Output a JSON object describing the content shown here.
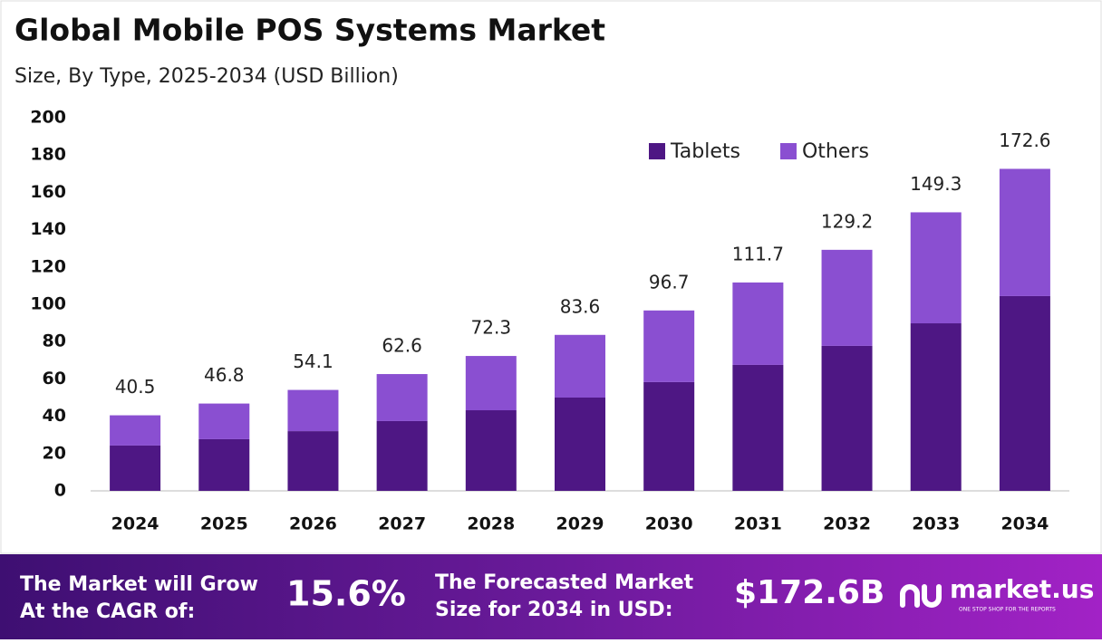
{
  "chart_data": {
    "type": "bar",
    "stacked": true,
    "title": "Global Mobile POS Systems Market",
    "subtitle": "Size, By Type, 2025-2034 (USD Billion)",
    "categories": [
      "2024",
      "2025",
      "2026",
      "2027",
      "2028",
      "2029",
      "2030",
      "2031",
      "2032",
      "2033",
      "2034"
    ],
    "series": [
      {
        "name": "Tablets",
        "color": "#4e1784",
        "values": [
          24.3,
          27.7,
          32.0,
          37.4,
          43.2,
          50.0,
          58.3,
          67.5,
          77.7,
          89.8,
          104.4
        ]
      },
      {
        "name": "Others",
        "color": "#8a4fd1",
        "values": [
          16.2,
          19.1,
          22.1,
          25.2,
          29.1,
          33.6,
          38.4,
          44.2,
          51.5,
          59.5,
          68.2
        ]
      }
    ],
    "totals": [
      40.5,
      46.8,
      54.1,
      62.6,
      72.3,
      83.6,
      96.7,
      111.7,
      129.2,
      149.3,
      172.6
    ],
    "ylim": [
      0,
      200
    ],
    "yticks": [
      0,
      20,
      40,
      60,
      80,
      100,
      120,
      140,
      160,
      180,
      200
    ],
    "grid": false,
    "legend": "top-right"
  },
  "footer": {
    "cagr_label": [
      "The Market will Grow",
      "At the CAGR of:"
    ],
    "cagr": "15.6%",
    "forecast_label": [
      "The Forecasted Market",
      "Size for 2034 in USD:"
    ],
    "forecast": "$172.6B",
    "brand": "market.us",
    "tagline": "ONE STOP SHOP FOR THE REPORTS"
  }
}
